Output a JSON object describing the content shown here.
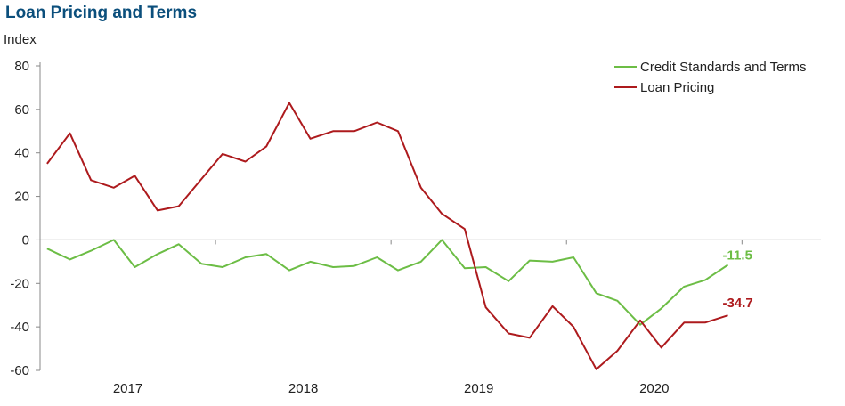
{
  "title": "Loan Pricing  and Terms",
  "chart_data": {
    "type": "line",
    "ylabel": "Index",
    "ylim": [
      -60,
      80
    ],
    "yticks": [
      80,
      60,
      40,
      20,
      0,
      -20,
      -40,
      -60
    ],
    "xlim": [
      2016.5,
      2020.95
    ],
    "xticks": [
      {
        "label": "2017",
        "x": 2017
      },
      {
        "label": "2018",
        "x": 2018
      },
      {
        "label": "2019",
        "x": 2019
      },
      {
        "label": "2020",
        "x": 2020
      }
    ],
    "year_boundaries": [
      2017.5,
      2018.5,
      2019.5,
      2020.5
    ],
    "legend_position": "top-right",
    "series": [
      {
        "name": "Credit Standards and Terms",
        "color": "#6cbd45",
        "end_label": "-11.5",
        "x": [
          2016.54,
          2016.67,
          2016.79,
          2016.92,
          2017.04,
          2017.17,
          2017.29,
          2017.42,
          2017.54,
          2017.67,
          2017.79,
          2017.92,
          2018.04,
          2018.17,
          2018.29,
          2018.42,
          2018.54,
          2018.67,
          2018.79,
          2018.92,
          2019.04,
          2019.17,
          2019.29,
          2019.42,
          2019.54,
          2019.67,
          2019.79,
          2019.92,
          2020.04,
          2020.17,
          2020.29,
          2020.42
        ],
        "values": [
          -4,
          -9,
          -5,
          0,
          -12.5,
          -6.5,
          -2,
          -11,
          -12.5,
          -8,
          -6.5,
          -14,
          -10,
          -12.5,
          -12,
          -8,
          -14,
          -10,
          0,
          -13,
          -12.5,
          -19,
          -9.5,
          -10,
          -8,
          -24.5,
          -28,
          -39,
          -31.5,
          -21.5,
          -18.5,
          -11.5
        ]
      },
      {
        "name": "Loan Pricing",
        "color": "#ad1a1d",
        "end_label": "-34.7",
        "x": [
          2016.54,
          2016.67,
          2016.79,
          2016.92,
          2017.04,
          2017.17,
          2017.29,
          2017.42,
          2017.54,
          2017.67,
          2017.79,
          2017.92,
          2018.04,
          2018.17,
          2018.29,
          2018.42,
          2018.54,
          2018.67,
          2018.79,
          2018.92,
          2019.04,
          2019.17,
          2019.29,
          2019.42,
          2019.54,
          2019.67,
          2019.79,
          2019.92,
          2020.04,
          2020.17,
          2020.29,
          2020.42
        ],
        "values": [
          35,
          49,
          27.5,
          24,
          29.5,
          13.5,
          15.5,
          28,
          39.5,
          36,
          43,
          63,
          46.5,
          50,
          50,
          54,
          50,
          24,
          12,
          5,
          -31,
          -43,
          -45,
          -30.5,
          -40,
          -59.5,
          -51,
          -37,
          -49.5,
          -38,
          -38,
          -34.7
        ]
      }
    ]
  }
}
